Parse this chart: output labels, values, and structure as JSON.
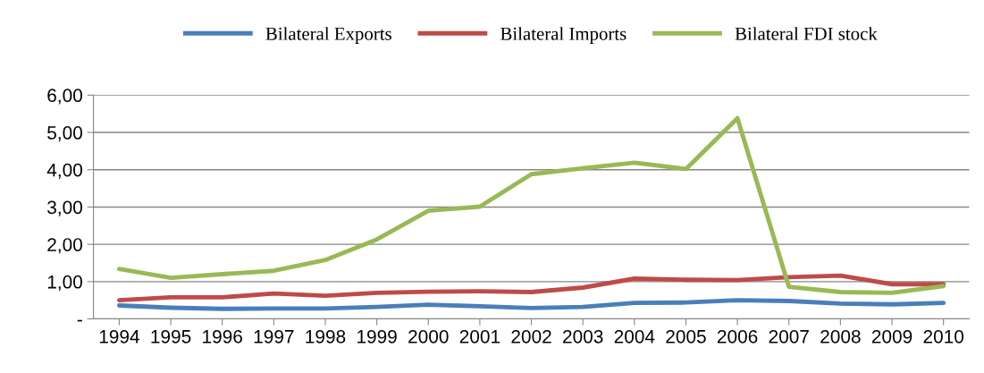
{
  "chart_data": {
    "type": "line",
    "categories": [
      "1994",
      "1995",
      "1996",
      "1997",
      "1998",
      "1999",
      "2000",
      "2001",
      "2002",
      "2003",
      "2004",
      "2005",
      "2006",
      "2007",
      "2008",
      "2009",
      "2010"
    ],
    "series": [
      {
        "name": "Bilateral Exports",
        "color": "#4a7ebb",
        "values": [
          0.36,
          0.3,
          0.27,
          0.28,
          0.28,
          0.32,
          0.38,
          0.34,
          0.29,
          0.32,
          0.43,
          0.44,
          0.5,
          0.48,
          0.41,
          0.39,
          0.43
        ]
      },
      {
        "name": "Bilateral Imports",
        "color": "#be4b48",
        "values": [
          0.5,
          0.58,
          0.58,
          0.68,
          0.62,
          0.7,
          0.73,
          0.74,
          0.72,
          0.84,
          1.08,
          1.05,
          1.04,
          1.12,
          1.16,
          0.93,
          0.93
        ]
      },
      {
        "name": "Bilateral FDI stock",
        "color": "#98b954",
        "values": [
          1.34,
          1.1,
          1.2,
          1.29,
          1.58,
          2.13,
          2.9,
          3.01,
          3.88,
          4.04,
          4.19,
          4.02,
          5.38,
          0.86,
          0.72,
          0.7,
          0.88
        ]
      }
    ],
    "ylim": [
      0,
      6
    ],
    "yticks": [
      {
        "value": 0,
        "label": "-"
      },
      {
        "value": 1,
        "label": "1,00"
      },
      {
        "value": 2,
        "label": "2,00"
      },
      {
        "value": 3,
        "label": "3,00"
      },
      {
        "value": 4,
        "label": "4,00"
      },
      {
        "value": 5,
        "label": "5,00"
      },
      {
        "value": 6,
        "label": "6,00"
      }
    ],
    "grid": "y",
    "legend": "top",
    "marker": "none",
    "line_style": "solid"
  }
}
